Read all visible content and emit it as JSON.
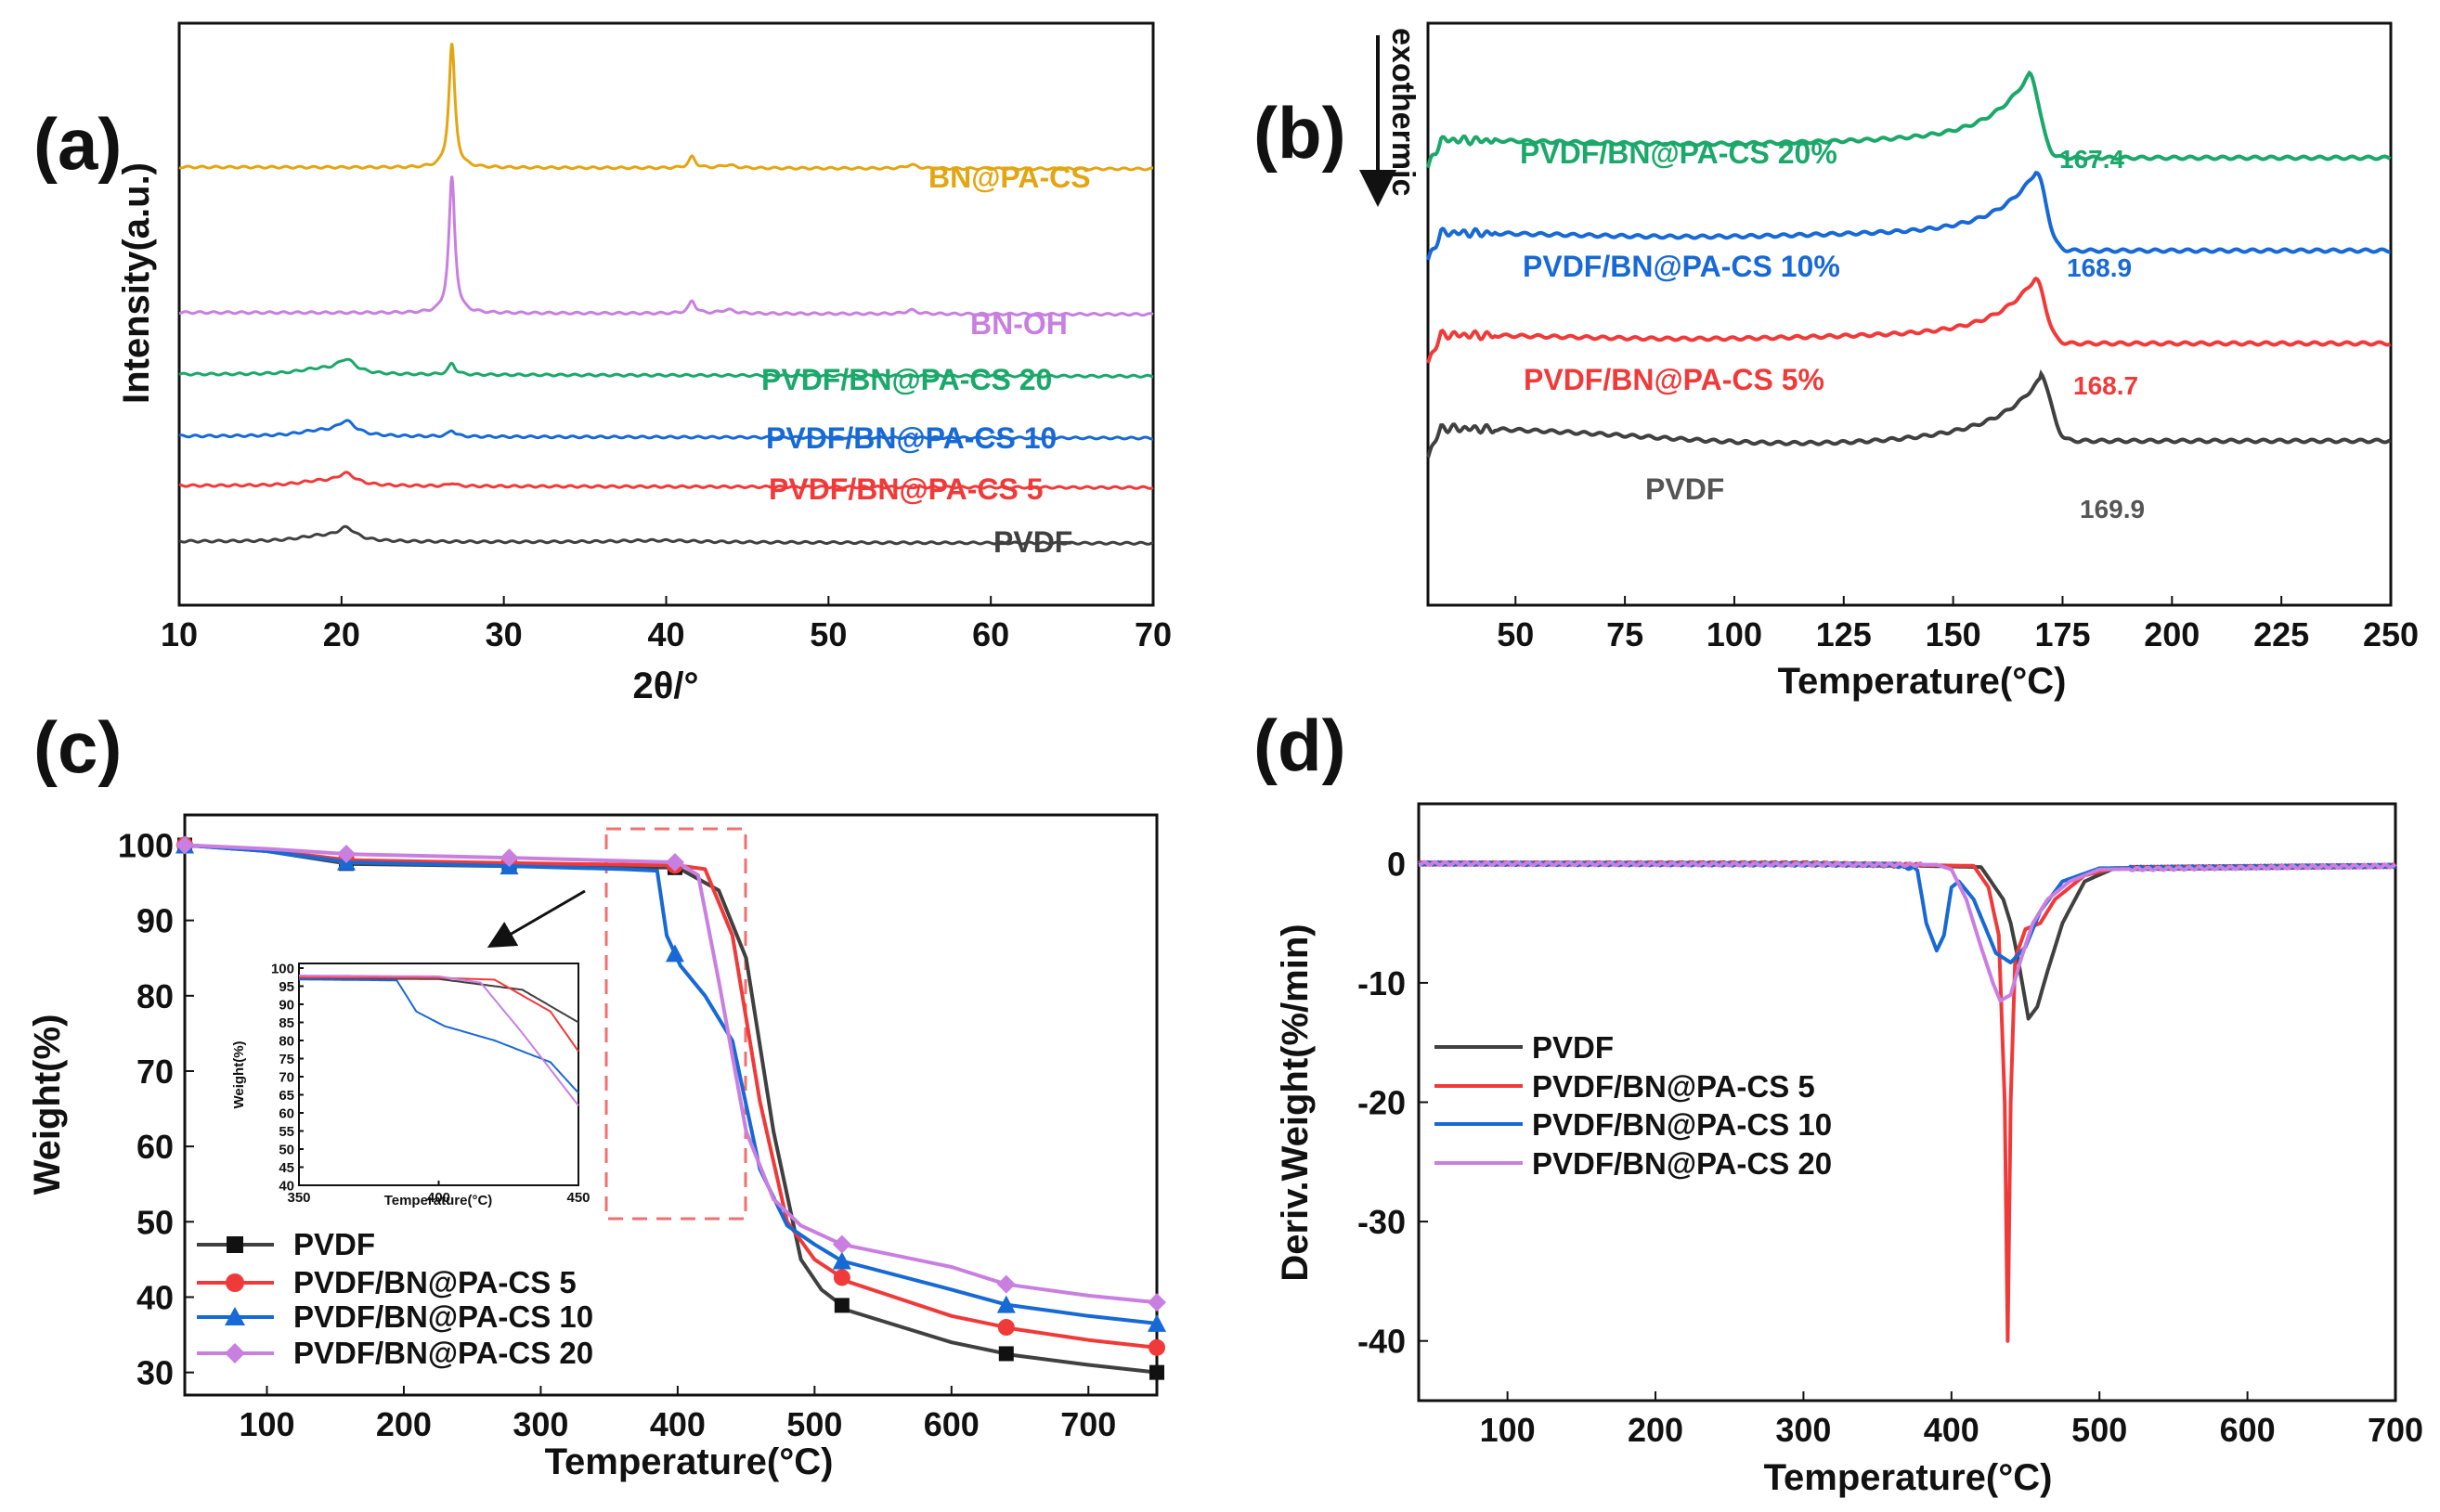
{
  "colors": {
    "pvdf": "#404040",
    "cs5": "#f03a3a",
    "cs10": "#1769d6",
    "cs20": "#c97fe0",
    "bnpacs": "#e3a512",
    "bnoh": "#c97fe0",
    "cs20_dsc": "#1ba86a",
    "cs20_xrd": "#1ba86a",
    "box": "#f07070"
  },
  "chart_data": [
    {
      "panel": "(a)",
      "type": "line",
      "xlabel": "2θ/°",
      "ylabel": "Intensity(a.u.)",
      "xlim": [
        10,
        70
      ],
      "xticks": [
        10,
        20,
        30,
        40,
        50,
        60,
        70
      ],
      "series": [
        {
          "name": "BN@PA-CS",
          "baseline": 6.9,
          "peaks": [
            [
              26.8,
              2.0,
              0.22
            ],
            [
              41.6,
              0.18,
              0.25
            ],
            [
              43.8,
              0.05,
              0.5
            ],
            [
              55.1,
              0.06,
              0.4
            ]
          ]
        },
        {
          "name": "BN-OH",
          "baseline": 4.55,
          "peaks": [
            [
              26.8,
              2.2,
              0.22
            ],
            [
              41.6,
              0.2,
              0.25
            ],
            [
              43.8,
              0.06,
              0.5
            ],
            [
              55.1,
              0.06,
              0.4
            ]
          ]
        },
        {
          "name": "PVDF/BN@PA-CS 20",
          "baseline": 3.55,
          "peaks": [
            [
              18.5,
              0.08,
              1.5
            ],
            [
              20.3,
              0.22,
              0.7
            ],
            [
              26.8,
              0.18,
              0.25
            ]
          ]
        },
        {
          "name": "PVDF/BN@PA-CS 10",
          "baseline": 2.55,
          "peaks": [
            [
              18.5,
              0.08,
              1.5
            ],
            [
              20.3,
              0.22,
              0.7
            ],
            [
              26.8,
              0.1,
              0.25
            ]
          ]
        },
        {
          "name": "PVDF/BN@PA-CS 5",
          "baseline": 1.75,
          "peaks": [
            [
              18.5,
              0.07,
              1.5
            ],
            [
              20.3,
              0.18,
              0.7
            ],
            [
              26.8,
              0.05,
              0.25
            ]
          ]
        },
        {
          "name": "PVDF",
          "baseline": 0.85,
          "peaks": [
            [
              18.5,
              0.08,
              1.5
            ],
            [
              20.3,
              0.2,
              0.7
            ],
            [
              39.5,
              0.03,
              3
            ]
          ]
        }
      ]
    },
    {
      "panel": "(b)",
      "type": "line",
      "xlabel": "Temperature(°C)",
      "ylabel": "exothermic",
      "xlim": [
        30,
        250
      ],
      "xticks": [
        50,
        75,
        100,
        125,
        150,
        175,
        200,
        225,
        250
      ],
      "series": [
        {
          "name": "PVDF/BN@PA-CS 20%",
          "peak_label": "167.4",
          "peak_T": 167.4,
          "baseline": 9.8,
          "end": 9.4,
          "height": 1.4
        },
        {
          "name": "PVDF/BN@PA-CS 10%",
          "peak_label": "168.9",
          "peak_T": 168.9,
          "baseline": 7.8,
          "end": 7.4,
          "height": 1.3
        },
        {
          "name": "PVDF/BN@PA-CS 5%",
          "peak_label": "168.7",
          "peak_T": 168.7,
          "baseline": 5.6,
          "end": 5.4,
          "height": 1.2
        },
        {
          "name": "PVDF",
          "peak_label": "169.9",
          "peak_T": 169.9,
          "baseline": 3.6,
          "end": 3.3,
          "height": 1.15
        }
      ]
    },
    {
      "panel": "(c)",
      "type": "line",
      "xlabel": "Temperature(°C)",
      "ylabel": "Weight(%)",
      "xlim": [
        40,
        750
      ],
      "ylim": [
        27,
        104
      ],
      "xticks": [
        100,
        200,
        300,
        400,
        500,
        600,
        700
      ],
      "yticks": [
        30,
        40,
        50,
        60,
        70,
        80,
        90,
        100
      ],
      "series": [
        {
          "name": "PVDF",
          "marker": "square",
          "points": [
            [
              40,
              100
            ],
            [
              100,
              99.2
            ],
            [
              160,
              97.5
            ],
            [
              280,
              97.2
            ],
            [
              400,
              97
            ],
            [
              430,
              94
            ],
            [
              450,
              85
            ],
            [
              470,
              62
            ],
            [
              490,
              45
            ],
            [
              505,
              41
            ],
            [
              525,
              38.2
            ],
            [
              600,
              34
            ],
            [
              645,
              32.3
            ],
            [
              700,
              31
            ],
            [
              750,
              30
            ]
          ]
        },
        {
          "name": "PVDF/BN@PA-CS 5",
          "marker": "circle",
          "points": [
            [
              40,
              100
            ],
            [
              100,
              99.3
            ],
            [
              160,
              98
            ],
            [
              280,
              97.6
            ],
            [
              400,
              97.3
            ],
            [
              420,
              96.8
            ],
            [
              440,
              88
            ],
            [
              460,
              66
            ],
            [
              480,
              50
            ],
            [
              500,
              45
            ],
            [
              525,
              42
            ],
            [
              600,
              37.5
            ],
            [
              645,
              35.8
            ],
            [
              700,
              34.3
            ],
            [
              750,
              33.3
            ]
          ]
        },
        {
          "name": "PVDF/BN@PA-CS 10",
          "marker": "triangle",
          "points": [
            [
              40,
              100
            ],
            [
              100,
              99.2
            ],
            [
              160,
              97.7
            ],
            [
              280,
              97.2
            ],
            [
              360,
              96.8
            ],
            [
              385,
              96.6
            ],
            [
              392,
              88
            ],
            [
              402,
              84
            ],
            [
              420,
              80
            ],
            [
              440,
              74
            ],
            [
              460,
              57
            ],
            [
              480,
              49.5
            ],
            [
              500,
              47
            ],
            [
              520,
              44.8
            ],
            [
              600,
              41
            ],
            [
              640,
              39
            ],
            [
              700,
              37.5
            ],
            [
              750,
              36.5
            ]
          ]
        },
        {
          "name": "PVDF/BN@PA-CS 20",
          "marker": "diamond",
          "points": [
            [
              40,
              100
            ],
            [
              100,
              99.5
            ],
            [
              160,
              98.8
            ],
            [
              280,
              98.3
            ],
            [
              400,
              97.7
            ],
            [
              415,
              96
            ],
            [
              430,
              82
            ],
            [
              450,
              62
            ],
            [
              470,
              53
            ],
            [
              490,
              49.5
            ],
            [
              520,
              47
            ],
            [
              600,
              44
            ],
            [
              640,
              41.7
            ],
            [
              700,
              40.2
            ],
            [
              750,
              39.3
            ]
          ]
        }
      ],
      "inset": {
        "xlabel": "Temperature(°C)",
        "ylabel": "Weight(%)",
        "xlim": [
          350,
          450
        ],
        "ylim": [
          40,
          100
        ],
        "xticks": [
          350,
          400,
          450
        ],
        "yticks": [
          40,
          45,
          50,
          55,
          60,
          65,
          70,
          75,
          80,
          85,
          90,
          95,
          100
        ]
      }
    },
    {
      "panel": "(d)",
      "type": "line",
      "xlabel": "Temperature(°C)",
      "ylabel": "Deriv.Weight(%/min)",
      "xlim": [
        40,
        700
      ],
      "ylim": [
        -45,
        5
      ],
      "xticks": [
        100,
        200,
        300,
        400,
        500,
        600,
        700
      ],
      "yticks": [
        0,
        -10,
        -20,
        -30,
        -40
      ],
      "series": [
        {
          "name": "PVDF",
          "points": [
            [
              40,
              0
            ],
            [
              300,
              0
            ],
            [
              420,
              -0.3
            ],
            [
              435,
              -3
            ],
            [
              440,
              -5
            ],
            [
              445,
              -8
            ],
            [
              452,
              -13
            ],
            [
              458,
              -12
            ],
            [
              465,
              -9
            ],
            [
              475,
              -5
            ],
            [
              490,
              -1.5
            ],
            [
              510,
              -0.4
            ],
            [
              700,
              -0.2
            ]
          ]
        },
        {
          "name": "PVDF/BN@PA-CS 5",
          "points": [
            [
              40,
              0
            ],
            [
              300,
              0
            ],
            [
              415,
              -0.2
            ],
            [
              425,
              -2
            ],
            [
              432,
              -6
            ],
            [
              436,
              -20
            ],
            [
              438,
              -40
            ],
            [
              440,
              -20
            ],
            [
              443,
              -8
            ],
            [
              450,
              -5.5
            ],
            [
              460,
              -5
            ],
            [
              470,
              -3
            ],
            [
              490,
              -1
            ],
            [
              510,
              -0.4
            ],
            [
              700,
              -0.2
            ]
          ]
        },
        {
          "name": "PVDF/BN@PA-CS 10",
          "points": [
            [
              40,
              0
            ],
            [
              360,
              -0.1
            ],
            [
              377,
              -0.5
            ],
            [
              383,
              -5
            ],
            [
              390,
              -7.3
            ],
            [
              395,
              -6
            ],
            [
              400,
              -2
            ],
            [
              405,
              -1.5
            ],
            [
              415,
              -3
            ],
            [
              430,
              -7.5
            ],
            [
              440,
              -8.3
            ],
            [
              450,
              -7
            ],
            [
              460,
              -4
            ],
            [
              475,
              -1.5
            ],
            [
              500,
              -0.4
            ],
            [
              700,
              -0.2
            ]
          ]
        },
        {
          "name": "PVDF/BN@PA-CS 20",
          "points": [
            [
              40,
              0
            ],
            [
              390,
              -0.1
            ],
            [
              400,
              -0.5
            ],
            [
              410,
              -3
            ],
            [
              420,
              -7
            ],
            [
              428,
              -10
            ],
            [
              433,
              -11.5
            ],
            [
              440,
              -11
            ],
            [
              447,
              -8
            ],
            [
              455,
              -5
            ],
            [
              465,
              -3
            ],
            [
              480,
              -1.5
            ],
            [
              500,
              -0.5
            ],
            [
              700,
              -0.2
            ]
          ]
        }
      ]
    }
  ]
}
